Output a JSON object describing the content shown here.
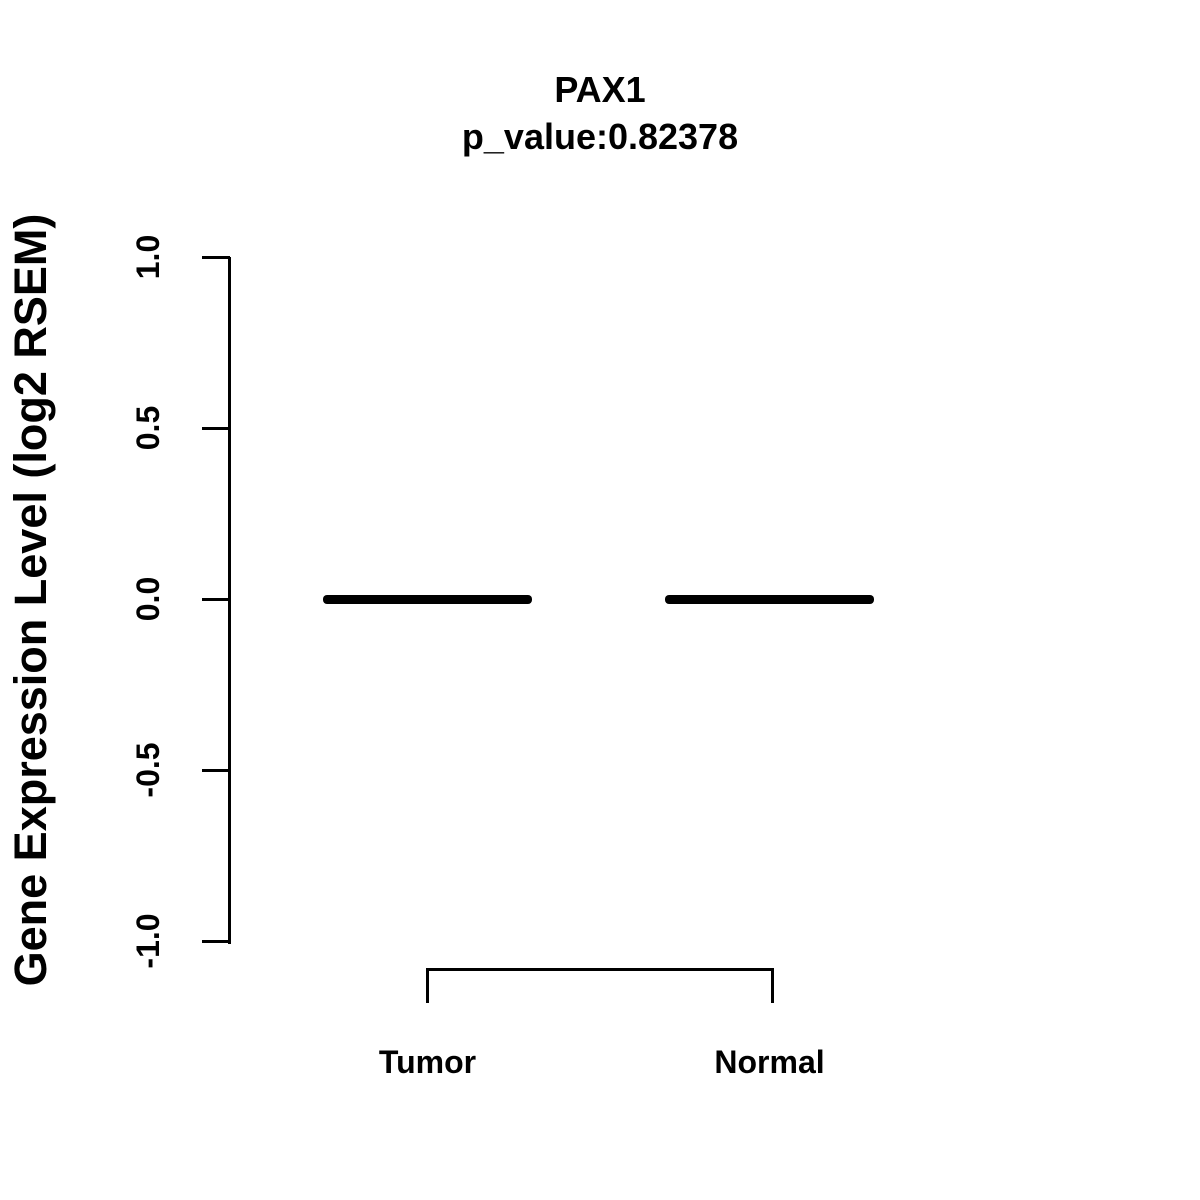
{
  "figure": {
    "background_color": "#ffffff",
    "foreground_color": "#000000"
  },
  "chart_data": {
    "type": "boxplot",
    "title": "PAX1",
    "subtitle": "p_value:0.82378",
    "p_value": 0.82378,
    "xlabel": "",
    "ylabel": "Gene Expression Level (log2 RSEM)",
    "ylim": [
      -1.0,
      1.0
    ],
    "yticks": [
      "1.0",
      "0.5",
      "0.0",
      "-0.5",
      "-1.0"
    ],
    "ytick_values": [
      1.0,
      0.5,
      0.0,
      -0.5,
      -1.0
    ],
    "grid": false,
    "legend": null,
    "categories": [
      "Tumor",
      "Normal"
    ],
    "groups": [
      {
        "label": "Tumor",
        "median": 0.0,
        "q1": 0.0,
        "q3": 0.0,
        "min": 0.0,
        "max": 0.0
      },
      {
        "label": "Normal",
        "median": 0.0,
        "q1": 0.0,
        "q3": 0.0,
        "min": 0.0,
        "max": 0.0
      }
    ]
  }
}
